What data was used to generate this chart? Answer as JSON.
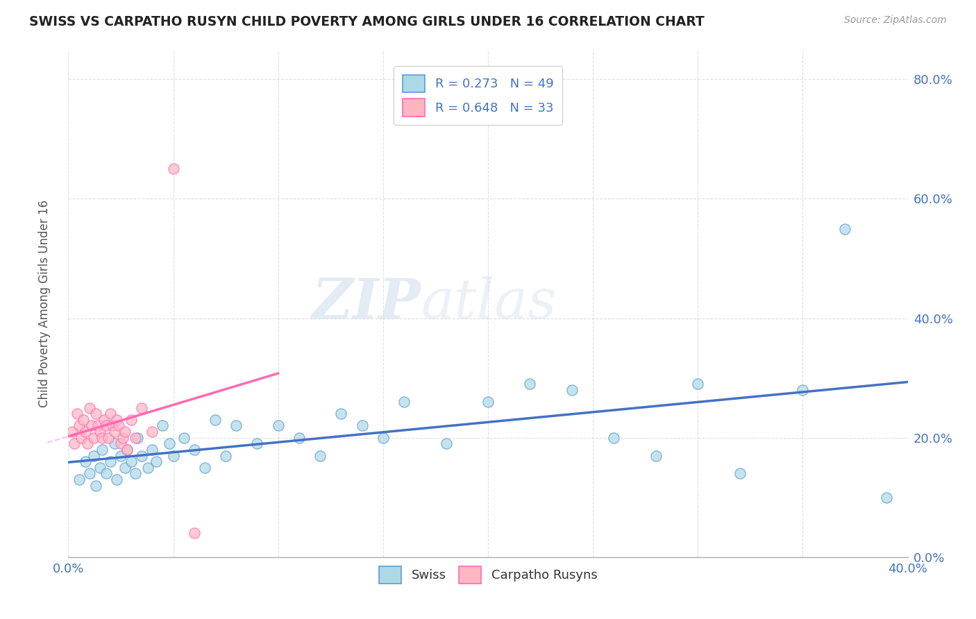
{
  "title": "SWISS VS CARPATHO RUSYN CHILD POVERTY AMONG GIRLS UNDER 16 CORRELATION CHART",
  "source": "Source: ZipAtlas.com",
  "ylabel": "Child Poverty Among Girls Under 16",
  "xlim": [
    0.0,
    0.4
  ],
  "ylim": [
    0.0,
    0.85
  ],
  "xticks": [
    0.0,
    0.05,
    0.1,
    0.15,
    0.2,
    0.25,
    0.3,
    0.35,
    0.4
  ],
  "yticks": [
    0.0,
    0.2,
    0.4,
    0.6,
    0.8
  ],
  "swiss_color": "#ADD8E6",
  "swiss_edge_color": "#5B9BD5",
  "carpatho_color": "#FFB6C1",
  "carpatho_edge_color": "#FF69B4",
  "swiss_line_color": "#4472C4",
  "carpatho_line_color": "#FF69B4",
  "background_color": "#FFFFFF",
  "grid_color": "#CCCCCC",
  "swiss_R": 0.273,
  "swiss_N": 49,
  "carpatho_R": 0.648,
  "carpatho_N": 33,
  "watermark_zip": "ZIP",
  "watermark_atlas": "atlas",
  "swiss_scatter_x": [
    0.005,
    0.008,
    0.01,
    0.012,
    0.013,
    0.015,
    0.016,
    0.018,
    0.02,
    0.022,
    0.023,
    0.025,
    0.027,
    0.028,
    0.03,
    0.032,
    0.033,
    0.035,
    0.038,
    0.04,
    0.042,
    0.045,
    0.048,
    0.05,
    0.055,
    0.06,
    0.065,
    0.07,
    0.075,
    0.08,
    0.09,
    0.1,
    0.11,
    0.12,
    0.13,
    0.14,
    0.15,
    0.16,
    0.18,
    0.2,
    0.22,
    0.24,
    0.26,
    0.28,
    0.3,
    0.32,
    0.35,
    0.37,
    0.39
  ],
  "swiss_scatter_y": [
    0.13,
    0.16,
    0.14,
    0.17,
    0.12,
    0.15,
    0.18,
    0.14,
    0.16,
    0.19,
    0.13,
    0.17,
    0.15,
    0.18,
    0.16,
    0.14,
    0.2,
    0.17,
    0.15,
    0.18,
    0.16,
    0.22,
    0.19,
    0.17,
    0.2,
    0.18,
    0.15,
    0.23,
    0.17,
    0.22,
    0.19,
    0.22,
    0.2,
    0.17,
    0.24,
    0.22,
    0.2,
    0.26,
    0.19,
    0.26,
    0.29,
    0.28,
    0.2,
    0.17,
    0.29,
    0.14,
    0.28,
    0.55,
    0.1
  ],
  "carpatho_scatter_x": [
    0.002,
    0.003,
    0.004,
    0.005,
    0.006,
    0.007,
    0.008,
    0.009,
    0.01,
    0.011,
    0.012,
    0.013,
    0.014,
    0.015,
    0.016,
    0.017,
    0.018,
    0.019,
    0.02,
    0.021,
    0.022,
    0.023,
    0.024,
    0.025,
    0.026,
    0.027,
    0.028,
    0.03,
    0.032,
    0.035,
    0.04,
    0.05,
    0.06
  ],
  "carpatho_scatter_y": [
    0.21,
    0.19,
    0.24,
    0.22,
    0.2,
    0.23,
    0.21,
    0.19,
    0.25,
    0.22,
    0.2,
    0.24,
    0.22,
    0.21,
    0.2,
    0.23,
    0.22,
    0.2,
    0.24,
    0.22,
    0.21,
    0.23,
    0.22,
    0.19,
    0.2,
    0.21,
    0.18,
    0.23,
    0.2,
    0.25,
    0.21,
    0.65,
    0.04
  ]
}
